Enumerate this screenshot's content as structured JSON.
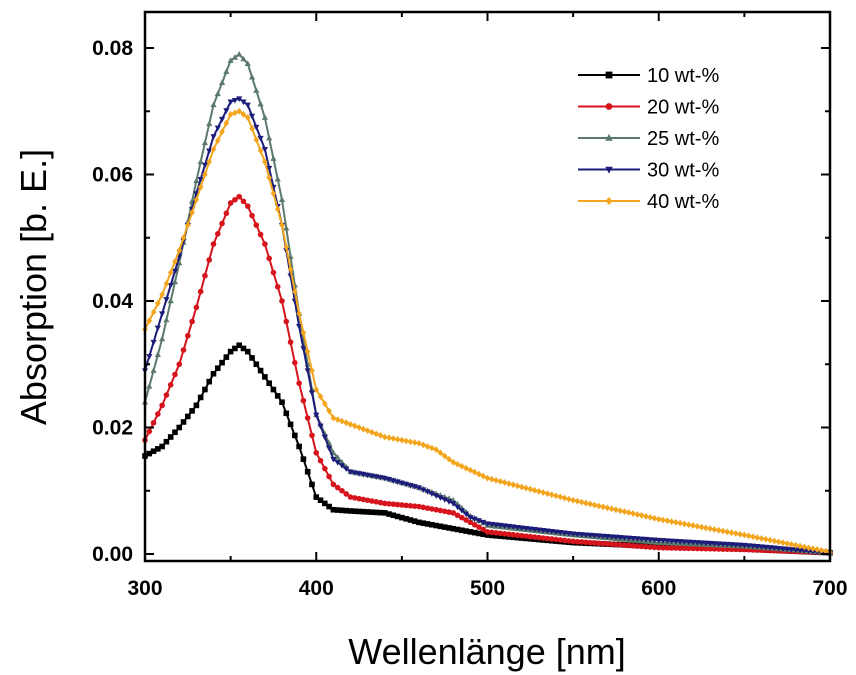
{
  "chart_data": {
    "type": "line",
    "title": "",
    "xlabel": "Wellenlänge [nm]",
    "ylabel": "Absorption [b. E.]",
    "xlim": [
      300,
      700
    ],
    "ylim": [
      0.0,
      0.082
    ],
    "xticks": [
      300,
      400,
      500,
      600,
      700
    ],
    "xtick_labels": [
      "300",
      "400",
      "500",
      "600",
      "700"
    ],
    "yticks": [
      0.0,
      0.02,
      0.04,
      0.06,
      0.08
    ],
    "ytick_labels": [
      "0.00",
      "0.02",
      "0.04",
      "0.06",
      "0.08"
    ],
    "grid": false,
    "legend_position": "top-right",
    "series": [
      {
        "name": "10 wt-%",
        "color": "#000000",
        "marker": "square",
        "x": [
          300,
          310,
          320,
          330,
          340,
          350,
          355,
          360,
          370,
          380,
          390,
          400,
          410,
          420,
          440,
          460,
          480,
          500,
          550,
          600,
          650,
          700
        ],
        "y": [
          0.0155,
          0.017,
          0.02,
          0.0235,
          0.0285,
          0.032,
          0.033,
          0.032,
          0.028,
          0.024,
          0.017,
          0.009,
          0.007,
          0.0068,
          0.0065,
          0.005,
          0.004,
          0.003,
          0.0018,
          0.0012,
          0.0008,
          0.0002
        ]
      },
      {
        "name": "20 wt-%",
        "color": "#d6141c",
        "marker": "circle",
        "x": [
          300,
          310,
          320,
          330,
          340,
          350,
          355,
          360,
          370,
          380,
          390,
          400,
          410,
          420,
          440,
          460,
          470,
          480,
          490,
          500,
          550,
          600,
          650,
          700
        ],
        "y": [
          0.018,
          0.0235,
          0.03,
          0.039,
          0.049,
          0.0555,
          0.0565,
          0.055,
          0.049,
          0.04,
          0.027,
          0.016,
          0.011,
          0.009,
          0.008,
          0.0075,
          0.007,
          0.0065,
          0.005,
          0.0035,
          0.002,
          0.001,
          0.0007,
          0.0002
        ]
      },
      {
        "name": "25 wt-%",
        "color": "#5b7a6b",
        "marker": "triangle-up",
        "x": [
          300,
          310,
          320,
          330,
          340,
          350,
          355,
          360,
          370,
          380,
          390,
          400,
          410,
          420,
          440,
          460,
          480,
          490,
          500,
          550,
          600,
          650,
          700
        ],
        "y": [
          0.024,
          0.034,
          0.046,
          0.059,
          0.071,
          0.078,
          0.079,
          0.0775,
          0.069,
          0.056,
          0.038,
          0.022,
          0.016,
          0.013,
          0.012,
          0.0105,
          0.0085,
          0.006,
          0.0045,
          0.003,
          0.0018,
          0.0012,
          0.0002
        ]
      },
      {
        "name": "30 wt-%",
        "color": "#1c1c7a",
        "marker": "triangle-down",
        "x": [
          300,
          310,
          320,
          330,
          340,
          350,
          355,
          360,
          370,
          380,
          390,
          400,
          410,
          420,
          440,
          460,
          480,
          490,
          500,
          550,
          600,
          650,
          700
        ],
        "y": [
          0.029,
          0.038,
          0.047,
          0.057,
          0.066,
          0.0715,
          0.072,
          0.071,
          0.064,
          0.052,
          0.036,
          0.022,
          0.015,
          0.013,
          0.012,
          0.0105,
          0.008,
          0.0058,
          0.0048,
          0.0032,
          0.0022,
          0.0014,
          0.0002
        ]
      },
      {
        "name": "40 wt-%",
        "color": "#f2a51d",
        "marker": "diamond",
        "x": [
          300,
          310,
          320,
          330,
          340,
          350,
          355,
          360,
          370,
          380,
          390,
          400,
          410,
          420,
          440,
          460,
          470,
          480,
          500,
          550,
          600,
          650,
          700
        ],
        "y": [
          0.0355,
          0.041,
          0.048,
          0.056,
          0.064,
          0.0695,
          0.07,
          0.069,
          0.062,
          0.052,
          0.038,
          0.026,
          0.0215,
          0.0205,
          0.0185,
          0.0175,
          0.0165,
          0.0145,
          0.012,
          0.0085,
          0.0055,
          0.003,
          0.0003
        ]
      }
    ]
  }
}
